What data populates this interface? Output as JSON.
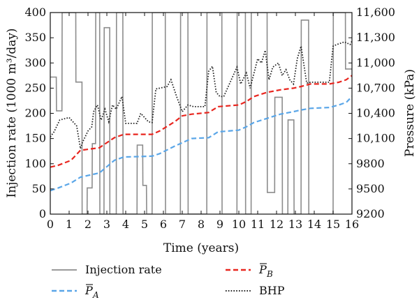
{
  "chart_data": {
    "type": "line",
    "xlabel": "Time (years)",
    "ylabel_left": "Injection rate (1000 m³/day)",
    "ylabel_right": "Pressure (kPa)",
    "xlim": [
      0,
      16
    ],
    "ylim_left": [
      0,
      400
    ],
    "ylim_right": [
      9200,
      11600
    ],
    "grid": false,
    "legend_placement": "bottom",
    "x_ticks": [
      0,
      1,
      2,
      3,
      4,
      5,
      6,
      7,
      8,
      9,
      10,
      11,
      12,
      13,
      14,
      15,
      16
    ],
    "y_left_ticks": [
      0,
      50,
      100,
      150,
      200,
      250,
      300,
      350,
      400
    ],
    "y_right_ticks": [
      "9200",
      "9500",
      "9800",
      "10,100",
      "10,400",
      "10,700",
      "11,000",
      "11,300",
      "11,600"
    ],
    "y_right_tick_values": [
      9200,
      9500,
      9800,
      10100,
      10400,
      10700,
      11000,
      11300,
      11600
    ],
    "series": [
      {
        "name": "Injection rate",
        "color": "#8c8c8c",
        "style": "solid",
        "axis": "left",
        "x": [
          0,
          0.01,
          0.32,
          0.33,
          0.62,
          0.63,
          1.35,
          1.36,
          1.68,
          1.69,
          1.95,
          1.96,
          2.22,
          2.23,
          2.4,
          2.41,
          2.62,
          2.63,
          2.85,
          2.86,
          3.15,
          3.16,
          3.5,
          3.51,
          3.85,
          3.86,
          4.6,
          4.61,
          4.9,
          4.91,
          5.1,
          5.11,
          5.4,
          5.41,
          6.1,
          6.11,
          6.9,
          6.91,
          7.3,
          7.31,
          8.3,
          8.31,
          8.75,
          8.76,
          9.1,
          9.11,
          9.9,
          9.91,
          10.35,
          10.36,
          10.65,
          10.66,
          11.1,
          11.11,
          11.5,
          11.51,
          11.9,
          11.91,
          12.3,
          12.31,
          12.6,
          12.61,
          12.92,
          12.93,
          13.3,
          13.31,
          13.7,
          13.71,
          15.0,
          15.01,
          15.65,
          15.66,
          15.95,
          15.96,
          16.0
        ],
        "y": [
          272,
          272,
          272,
          205,
          205,
          400,
          400,
          262,
          262,
          0,
          0,
          52,
          52,
          140,
          140,
          400,
          400,
          0,
          0,
          370,
          370,
          0,
          0,
          400,
          400,
          0,
          0,
          137,
          137,
          57,
          57,
          0,
          0,
          400,
          400,
          0,
          0,
          400,
          400,
          0,
          0,
          400,
          400,
          400,
          400,
          0,
          0,
          400,
          400,
          0,
          0,
          400,
          400,
          400,
          400,
          43,
          43,
          232,
          232,
          0,
          0,
          187,
          187,
          0,
          0,
          385,
          385,
          0,
          0,
          400,
          400,
          288,
          288,
          288,
          288
        ]
      },
      {
        "name": "P_A",
        "color": "#5aa6e8",
        "style": "dashed",
        "axis": "right",
        "x": [
          0,
          0.4,
          1.1,
          1.6,
          2.6,
          3.4,
          3.9,
          5.4,
          5.8,
          6.6,
          7.0,
          7.5,
          8.4,
          8.9,
          10.0,
          10.4,
          10.8,
          11.5,
          12.2,
          12.9,
          13.3,
          13.8,
          14.8,
          15.3,
          15.7,
          16.0
        ],
        "y": [
          9480,
          9510,
          9570,
          9640,
          9690,
          9840,
          9880,
          9890,
          9920,
          10010,
          10050,
          10100,
          10110,
          10180,
          10200,
          10240,
          10290,
          10340,
          10390,
          10420,
          10440,
          10460,
          10470,
          10500,
          10530,
          10600
        ]
      },
      {
        "name": "P_B",
        "color": "#e8261f",
        "style": "dashed",
        "axis": "right",
        "x": [
          0,
          0.4,
          1.1,
          1.6,
          2.6,
          3.0,
          3.4,
          3.9,
          5.4,
          5.8,
          6.6,
          7.0,
          7.5,
          8.4,
          8.9,
          10.0,
          10.4,
          10.8,
          11.5,
          12.2,
          12.9,
          13.3,
          13.8,
          14.8,
          15.3,
          15.7,
          16.0
        ],
        "y": [
          9760,
          9780,
          9840,
          9960,
          9990,
          10050,
          10110,
          10150,
          10150,
          10190,
          10300,
          10370,
          10390,
          10410,
          10480,
          10500,
          10540,
          10600,
          10650,
          10680,
          10700,
          10720,
          10750,
          10750,
          10770,
          10800,
          10850
        ]
      },
      {
        "name": "BHP",
        "color": "#222222",
        "style": "dotted",
        "axis": "right",
        "x": [
          0,
          0.2,
          0.5,
          1.0,
          1.4,
          1.6,
          1.7,
          2.0,
          2.2,
          2.3,
          2.5,
          2.7,
          2.9,
          3.1,
          3.3,
          3.5,
          3.8,
          4.0,
          4.6,
          4.8,
          5.2,
          5.4,
          5.6,
          6.2,
          6.4,
          6.7,
          7.0,
          7.3,
          7.6,
          8.2,
          8.4,
          8.6,
          8.8,
          9.0,
          9.2,
          9.9,
          10.1,
          10.4,
          10.6,
          11.0,
          11.2,
          11.4,
          11.6,
          11.8,
          12.1,
          12.3,
          12.5,
          12.7,
          12.9,
          13.1,
          13.3,
          13.6,
          13.8,
          14.8,
          15.0,
          15.2,
          15.6,
          15.9,
          16.0
        ],
        "y": [
          10120,
          10180,
          10320,
          10350,
          10250,
          9980,
          10050,
          10190,
          10240,
          10420,
          10500,
          10320,
          10450,
          10300,
          10500,
          10450,
          10600,
          10280,
          10280,
          10400,
          10300,
          10290,
          10690,
          10720,
          10800,
          10600,
          10420,
          10500,
          10480,
          10480,
          10900,
          10960,
          10650,
          10600,
          10600,
          10950,
          10750,
          10880,
          10700,
          11050,
          11000,
          11150,
          10800,
          10950,
          11000,
          10850,
          10920,
          10800,
          10750,
          11050,
          11200,
          10760,
          10770,
          10770,
          11200,
          11220,
          11250,
          11220,
          11260
        ]
      }
    ],
    "legend": [
      {
        "label": "Injection rate",
        "series": 0
      },
      {
        "label": "P_B",
        "series": 2,
        "math": "B"
      },
      {
        "label": "P_A",
        "series": 1,
        "math": "A"
      },
      {
        "label": "BHP",
        "series": 3
      }
    ]
  }
}
